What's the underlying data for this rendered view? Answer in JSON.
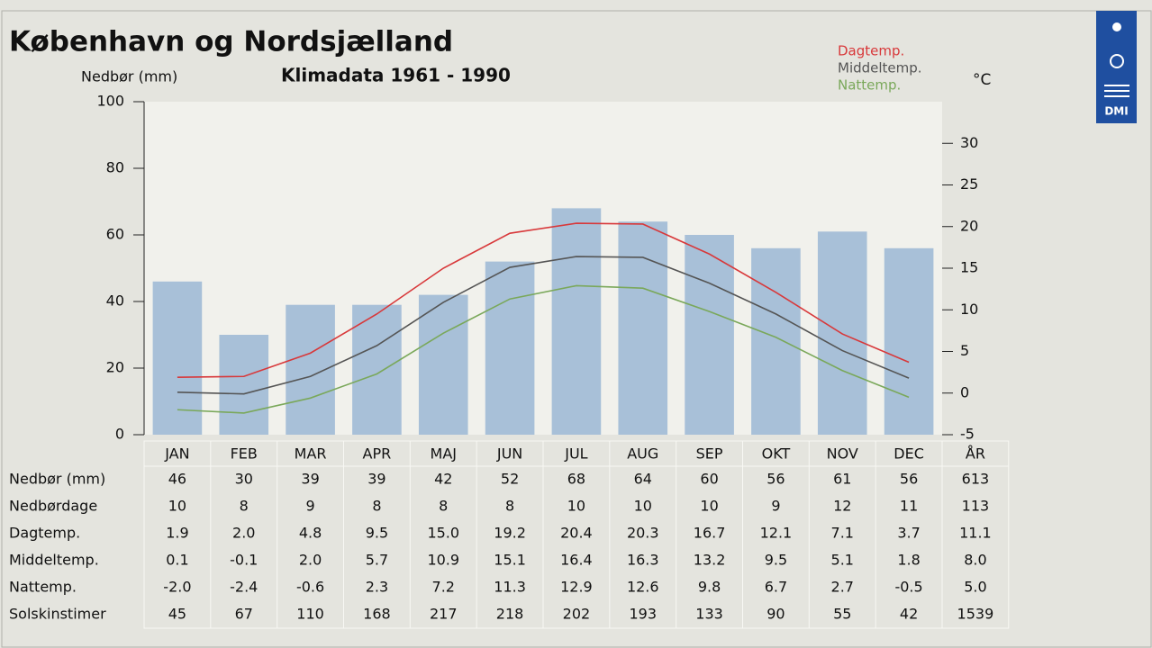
{
  "title": "København og Nordsjælland",
  "logo": "DMI",
  "chart_data": {
    "type": "bar",
    "subtitle": "Klimadata 1961 - 1990",
    "y_label": "Nedbør (mm)",
    "y2_label": "°C",
    "categories": [
      "JAN",
      "FEB",
      "MAR",
      "APR",
      "MAJ",
      "JUN",
      "JUL",
      "AUG",
      "SEP",
      "OKT",
      "NOV",
      "DEC"
    ],
    "ylim": [
      0,
      100
    ],
    "yticks": [
      0,
      20,
      40,
      60,
      80,
      100
    ],
    "y2lim": [
      -5,
      35
    ],
    "y2ticks": [
      -5,
      0,
      5,
      10,
      15,
      20,
      25,
      30
    ],
    "series": [
      {
        "type": "bar",
        "color": "#a8c0d8",
        "values": [
          46,
          30,
          39,
          39,
          42,
          52,
          68,
          64,
          60,
          56,
          61,
          56
        ]
      },
      {
        "type": "line",
        "axis": "y2",
        "name": "Dagtemp.",
        "color": "#d8383a",
        "values": [
          1.9,
          2.0,
          4.8,
          9.5,
          15.0,
          19.2,
          20.4,
          20.3,
          16.7,
          12.1,
          7.1,
          3.7
        ]
      },
      {
        "type": "line",
        "axis": "y2",
        "name": "Middeltemp.",
        "color": "#555555",
        "values": [
          0.1,
          -0.1,
          2.0,
          5.7,
          10.9,
          15.1,
          16.4,
          16.3,
          13.2,
          9.5,
          5.1,
          1.8
        ]
      },
      {
        "type": "line",
        "axis": "y2",
        "name": "Nattemp.",
        "color": "#7aa85a",
        "values": [
          -2.0,
          -2.4,
          -0.6,
          2.3,
          7.2,
          11.3,
          12.9,
          12.6,
          9.8,
          6.7,
          2.7,
          -0.5
        ]
      }
    ]
  },
  "table": {
    "header": [
      "JAN",
      "FEB",
      "MAR",
      "APR",
      "MAJ",
      "JUN",
      "JUL",
      "AUG",
      "SEP",
      "OKT",
      "NOV",
      "DEC",
      "ÅR"
    ],
    "rows": [
      [
        "Nedbør (mm)",
        "46",
        "30",
        "39",
        "39",
        "42",
        "52",
        "68",
        "64",
        "60",
        "56",
        "61",
        "56",
        "613"
      ],
      [
        "Nedbørdage",
        "10",
        "8",
        "9",
        "8",
        "8",
        "8",
        "10",
        "10",
        "10",
        "9",
        "12",
        "11",
        "113"
      ],
      [
        "Dagtemp.",
        "1.9",
        "2.0",
        "4.8",
        "9.5",
        "15.0",
        "19.2",
        "20.4",
        "20.3",
        "16.7",
        "12.1",
        "7.1",
        "3.7",
        "11.1"
      ],
      [
        "Middeltemp.",
        "0.1",
        "-0.1",
        "2.0",
        "5.7",
        "10.9",
        "15.1",
        "16.4",
        "16.3",
        "13.2",
        "9.5",
        "5.1",
        "1.8",
        "8.0"
      ],
      [
        "Nattemp.",
        "-2.0",
        "-2.4",
        "-0.6",
        "2.3",
        "7.2",
        "11.3",
        "12.9",
        "12.6",
        "9.8",
        "6.7",
        "2.7",
        "-0.5",
        "5.0"
      ],
      [
        "Solskinstimer",
        "45",
        "67",
        "110",
        "168",
        "217",
        "218",
        "202",
        "193",
        "133",
        "90",
        "55",
        "42",
        "1539"
      ]
    ]
  }
}
